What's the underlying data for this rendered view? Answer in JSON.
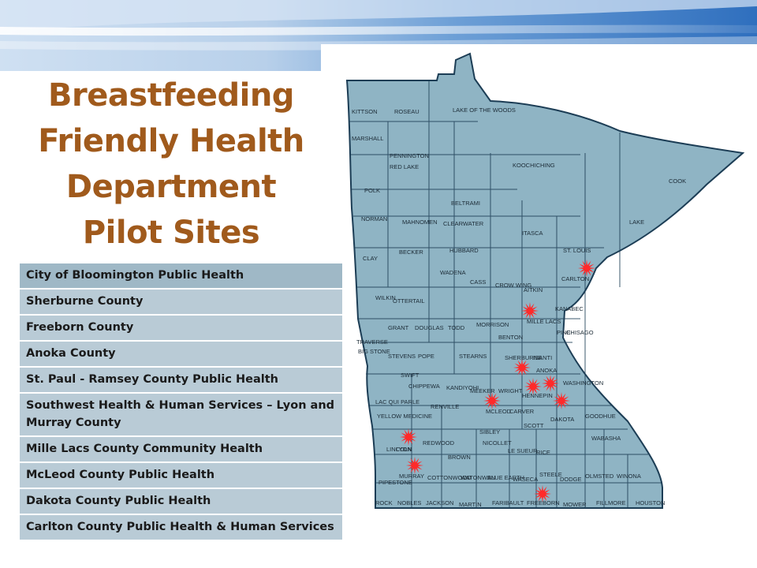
{
  "title_lines": [
    "Breastfeeding",
    "Friendly Health",
    "Department",
    "Pilot Sites"
  ],
  "pilot_sites": [
    "City of Bloomington Public Health",
    "Sherburne County",
    "Freeborn County",
    "Anoka County",
    "St. Paul - Ramsey County Public Health",
    "Southwest Health & Human Services – Lyon and Murray County",
    "Mille Lacs County Community Health",
    "McLeod County Public Health",
    "Dakota County Public Health",
    "Carlton County Public Health & Human Services"
  ],
  "map": {
    "state_fill": "#8fb4c4",
    "marker_color": "#ff2a2a",
    "county_labels": [
      "KITTSON",
      "ROSEAU",
      "LAKE OF THE WOODS",
      "MARSHALL",
      "PENNINGTON",
      "RED LAKE",
      "KOOCHICHING",
      "COOK",
      "POLK",
      "BELTRAMI",
      "CLEARWATER",
      "NORMAN",
      "MAHNOMEN",
      "ITASCA",
      "LAKE",
      "CLAY",
      "BECKER",
      "HUBBARD",
      "ST. LOUIS",
      "CARLTON",
      "CASS",
      "WADENA",
      "CROW WING",
      "AITKIN",
      "WILKIN",
      "OTTERTAIL",
      "GRANT",
      "DOUGLAS",
      "TODD",
      "MORRISON",
      "MILLE LACS",
      "KANABEC",
      "PINE",
      "TRAVERSE",
      "BIG STONE",
      "STEVENS",
      "POPE",
      "STEARNS",
      "BENTON",
      "SHERBURNE",
      "ISANTI",
      "CHISAGO",
      "ANOKA",
      "SWIFT",
      "CHIPPEWA",
      "KANDIYOHI",
      "MEEKER",
      "WRIGHT",
      "HENNEPIN",
      "WASHINGTON",
      "LAC QUI PARLE",
      "YELLOW MEDICINE",
      "RENVILLE",
      "MCLEOD",
      "CARVER",
      "DAKOTA",
      "SCOTT",
      "GOODHUE",
      "SIBLEY",
      "NICOLLET",
      "LINCOLN",
      "LYON",
      "REDWOOD",
      "BROWN",
      "LE SUEUR",
      "RICE",
      "WABASHA",
      "PIPESTONE",
      "MURRAY",
      "COTTONWOOD",
      "WATONWAN",
      "BLUE EARTH",
      "WASECA",
      "STEELE",
      "DODGE",
      "OLMSTED",
      "WINONA",
      "ROCK",
      "NOBLES",
      "JACKSON",
      "MARTIN",
      "FARIBAULT",
      "FREEBORN",
      "MOWER",
      "FILLMORE",
      "HOUSTON"
    ]
  }
}
